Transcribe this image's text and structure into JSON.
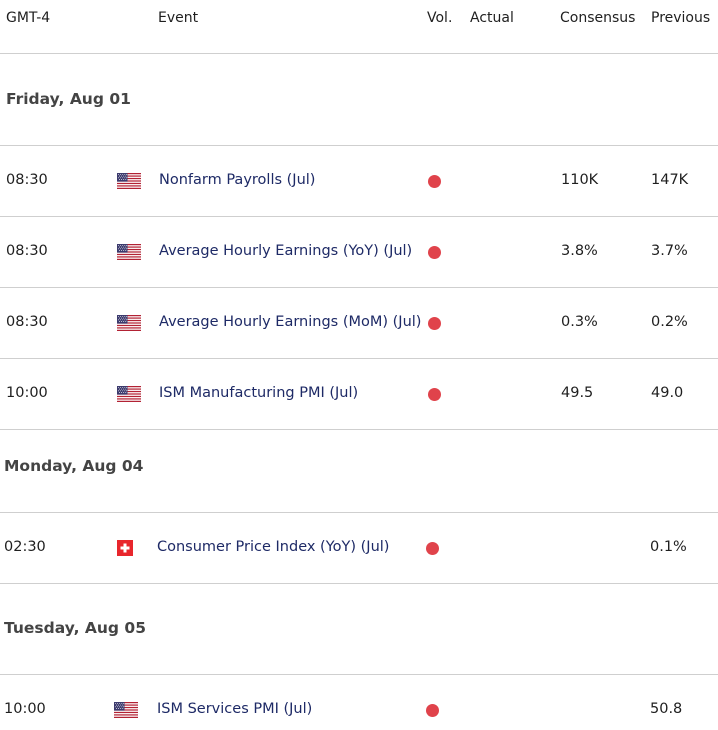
{
  "header": {
    "tz": "GMT-4",
    "event": "Event",
    "vol": "Vol.",
    "actual": "Actual",
    "consensus": "Consensus",
    "previous": "Previous"
  },
  "days": [
    {
      "label": "Friday, Aug 01"
    },
    {
      "label": "Monday, Aug 04"
    },
    {
      "label": "Tuesday, Aug 05"
    }
  ],
  "rows": [
    {
      "time": "08:30",
      "flag": "us-flag-icon",
      "event": "Nonfarm Payrolls (Jul)",
      "vol": "high",
      "actual": "",
      "consensus": "110K",
      "previous": "147K"
    },
    {
      "time": "08:30",
      "flag": "us-flag-icon",
      "event": "Average Hourly Earnings (YoY) (Jul)",
      "vol": "high",
      "actual": "",
      "consensus": "3.8%",
      "previous": "3.7%"
    },
    {
      "time": "08:30",
      "flag": "us-flag-icon",
      "event": "Average Hourly Earnings (MoM) (Jul)",
      "vol": "high",
      "actual": "",
      "consensus": "0.3%",
      "previous": "0.2%"
    },
    {
      "time": "10:00",
      "flag": "us-flag-icon",
      "event": "ISM Manufacturing PMI (Jul)",
      "vol": "high",
      "actual": "",
      "consensus": "49.5",
      "previous": "49.0"
    },
    {
      "time": "02:30",
      "flag": "swiss-flag-icon",
      "event": "Consumer Price Index (YoY) (Jul)",
      "vol": "high",
      "actual": "",
      "consensus": "",
      "previous": "0.1%"
    },
    {
      "time": "10:00",
      "flag": "us-flag-icon",
      "event": "ISM Services PMI (Jul)",
      "vol": "high",
      "actual": "",
      "consensus": "",
      "previous": "50.8"
    }
  ],
  "colors": {
    "high_volatility": "#e0434b",
    "event_text": "#1e2a66"
  }
}
